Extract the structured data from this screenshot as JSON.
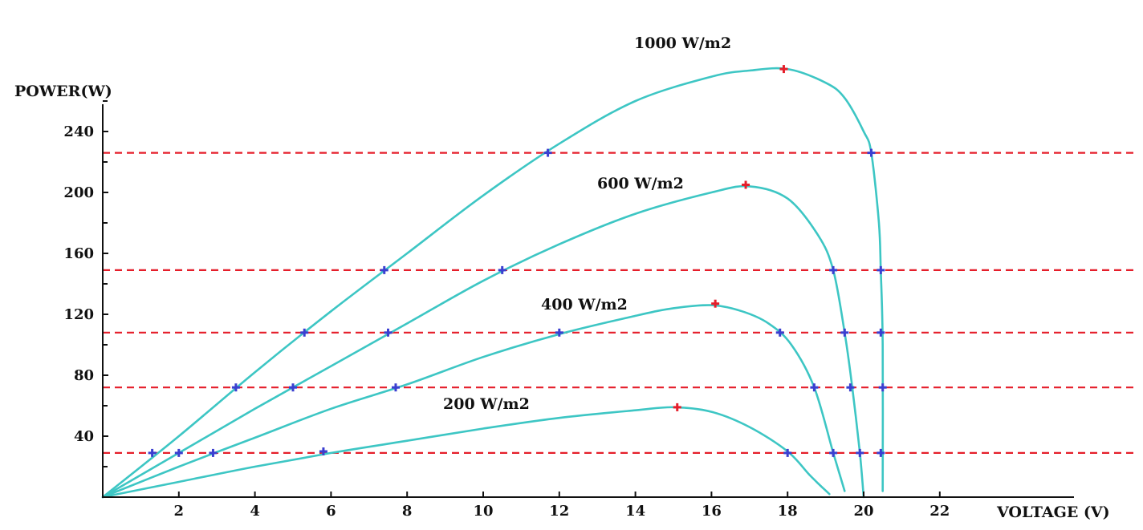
{
  "chart_data": {
    "type": "line",
    "title": "",
    "xlabel": "VOLTAGE (V)",
    "ylabel": "POWER(W)",
    "xlim": [
      0,
      25.5
    ],
    "ylim": [
      0,
      268
    ],
    "x_ticks": [
      2,
      4,
      6,
      8,
      10,
      12,
      14,
      16,
      18,
      20,
      22
    ],
    "x_tick_labels": [
      "2",
      "4",
      "6",
      "8",
      "10",
      "12",
      "14",
      "16",
      "18",
      "20",
      "22"
    ],
    "y_ticks": [
      40,
      80,
      120,
      160,
      200,
      240
    ],
    "y_tick_labels": [
      "40",
      "80",
      "120",
      "160",
      "200",
      "240"
    ],
    "reference_lines": [
      29,
      72,
      108,
      149,
      226
    ],
    "series": [
      {
        "name": "1000 W/m2",
        "label": "1000 W/m2",
        "x": [
          0,
          2,
          4,
          6,
          8,
          10,
          12,
          14,
          16,
          17,
          18,
          19,
          19.5,
          20,
          20.2,
          20.4,
          20.45,
          20.5,
          20.5
        ],
        "y": [
          0,
          40,
          82,
          122,
          160,
          198,
          232,
          260,
          276,
          280,
          281,
          272,
          262,
          240,
          226,
          180,
          149,
          100,
          4
        ],
        "mpp": {
          "x": 17.9,
          "y": 281
        },
        "markers": [
          {
            "x": 1.3,
            "y": 29
          },
          {
            "x": 3.5,
            "y": 72
          },
          {
            "x": 5.3,
            "y": 108
          },
          {
            "x": 7.4,
            "y": 149
          },
          {
            "x": 11.7,
            "y": 226
          },
          {
            "x": 20.2,
            "y": 226
          },
          {
            "x": 20.45,
            "y": 149
          },
          {
            "x": 20.45,
            "y": 108
          },
          {
            "x": 20.5,
            "y": 72
          },
          {
            "x": 20.45,
            "y": 29
          }
        ]
      },
      {
        "name": "600 W/m2",
        "label": "600 W/m2",
        "x": [
          0,
          2,
          4,
          6,
          8,
          10,
          12,
          14,
          16,
          17,
          18,
          18.8,
          19.2,
          19.5,
          19.7,
          19.9,
          20
        ],
        "y": [
          0,
          29,
          58,
          86,
          114,
          142,
          166,
          186,
          200,
          204,
          196,
          172,
          149,
          108,
          72,
          29,
          0
        ],
        "mpp": {
          "x": 16.9,
          "y": 205
        },
        "markers": [
          {
            "x": 2.0,
            "y": 29
          },
          {
            "x": 5.0,
            "y": 72
          },
          {
            "x": 7.5,
            "y": 108
          },
          {
            "x": 10.5,
            "y": 149
          },
          {
            "x": 19.2,
            "y": 149
          },
          {
            "x": 19.5,
            "y": 108
          },
          {
            "x": 19.65,
            "y": 72
          },
          {
            "x": 19.9,
            "y": 29
          }
        ]
      },
      {
        "name": "400 W/m2",
        "label": "400 W/m2",
        "x": [
          0,
          2,
          4,
          6,
          8,
          10,
          12,
          14,
          15,
          16,
          16.8,
          17.5,
          18.1,
          18.7,
          19.2,
          19.5
        ],
        "y": [
          0,
          20,
          39,
          58,
          74,
          92,
          107,
          119,
          124,
          126,
          122,
          114,
          100,
          72,
          29,
          4
        ],
        "mpp": {
          "x": 16.1,
          "y": 127
        },
        "markers": [
          {
            "x": 2.9,
            "y": 29
          },
          {
            "x": 7.7,
            "y": 72
          },
          {
            "x": 12.0,
            "y": 108
          },
          {
            "x": 17.8,
            "y": 108
          },
          {
            "x": 18.7,
            "y": 72
          },
          {
            "x": 19.2,
            "y": 29
          }
        ]
      },
      {
        "name": "200 W/m2",
        "label": "200 W/m2",
        "x": [
          0,
          2,
          4,
          6,
          8,
          10,
          12,
          14,
          15,
          16,
          17,
          18,
          18.6,
          19.1
        ],
        "y": [
          0,
          10,
          20,
          29,
          37,
          45,
          52,
          57,
          59,
          56,
          46,
          30,
          14,
          2
        ],
        "mpp": {
          "x": 15.1,
          "y": 59
        },
        "markers": [
          {
            "x": 5.8,
            "y": 30
          },
          {
            "x": 18.0,
            "y": 29
          }
        ]
      }
    ],
    "colors": {
      "curve": "#3dc6c4",
      "reference_line": "#e51e2a",
      "marker": "#3b3fd0",
      "mpp_marker": "#e51e2a"
    }
  }
}
